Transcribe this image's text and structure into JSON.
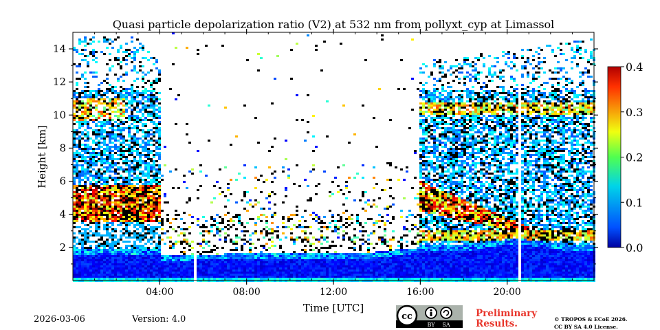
{
  "chart_data": {
    "type": "heatmap",
    "title": "Quasi particle depolarization ratio (V2) at 532 nm from pollyxt_cyp at Limassol",
    "xlabel": "Time [UTC]",
    "ylabel": "Height [km]",
    "x_range_hours": [
      0,
      24
    ],
    "ylim": [
      0,
      15
    ],
    "x_ticks": [
      {
        "value": 4,
        "label": "04:00"
      },
      {
        "value": 8,
        "label": "08:00"
      },
      {
        "value": 12,
        "label": "12:00"
      },
      {
        "value": 16,
        "label": "16:00"
      },
      {
        "value": 20,
        "label": "20:00"
      }
    ],
    "y_ticks": [
      {
        "value": 2,
        "label": "2"
      },
      {
        "value": 4,
        "label": "4"
      },
      {
        "value": 6,
        "label": "6"
      },
      {
        "value": 8,
        "label": "8"
      },
      {
        "value": 10,
        "label": "10"
      },
      {
        "value": 12,
        "label": "12"
      },
      {
        "value": 14,
        "label": "14"
      }
    ],
    "colorbar": {
      "min": 0.0,
      "max": 0.4,
      "colormap": "jet",
      "ticks": [
        {
          "value": 0.0,
          "label": "0.0"
        },
        {
          "value": 0.1,
          "label": "0.1"
        },
        {
          "value": 0.2,
          "label": "0.2"
        },
        {
          "value": 0.3,
          "label": "0.3"
        },
        {
          "value": 0.4,
          "label": "0.4"
        }
      ]
    },
    "features": [
      {
        "name": "boundary_layer",
        "time_start": 0,
        "time_end": 24,
        "top_km": 1.8,
        "depol": 0.05
      },
      {
        "name": "dust_layer_night_1",
        "time_start": 0,
        "time_end": 4,
        "bottom_km": 3.5,
        "top_km": 5.8,
        "depol": 0.3
      },
      {
        "name": "cirrus_night_1",
        "time_start": 0,
        "time_end": 2.2,
        "bottom_km": 9.5,
        "top_km": 11.0,
        "depol": 0.25
      },
      {
        "name": "dust_layer_night_2",
        "time_start": 16,
        "time_end": 21,
        "bottom_km": 3.0,
        "top_km": 6.0,
        "depol": 0.3
      },
      {
        "name": "cirrus_night_2",
        "time_start": 16,
        "time_end": 24,
        "bottom_km": 10.0,
        "top_km": 10.8,
        "depol": 0.25
      }
    ],
    "data_gaps_hours": [
      5.6,
      20.6
    ]
  },
  "footer": {
    "date": "2026-03-06",
    "version": "Version: 4.0",
    "license_badge": {
      "cc": "cc",
      "by": "BY",
      "sa": "SA"
    },
    "preliminary_line1": "Preliminary",
    "preliminary_line2": "Results.",
    "copyright_line1": "© TROPOS & ECoE 2026.",
    "copyright_line2": "CC BY SA 4.0 License."
  }
}
